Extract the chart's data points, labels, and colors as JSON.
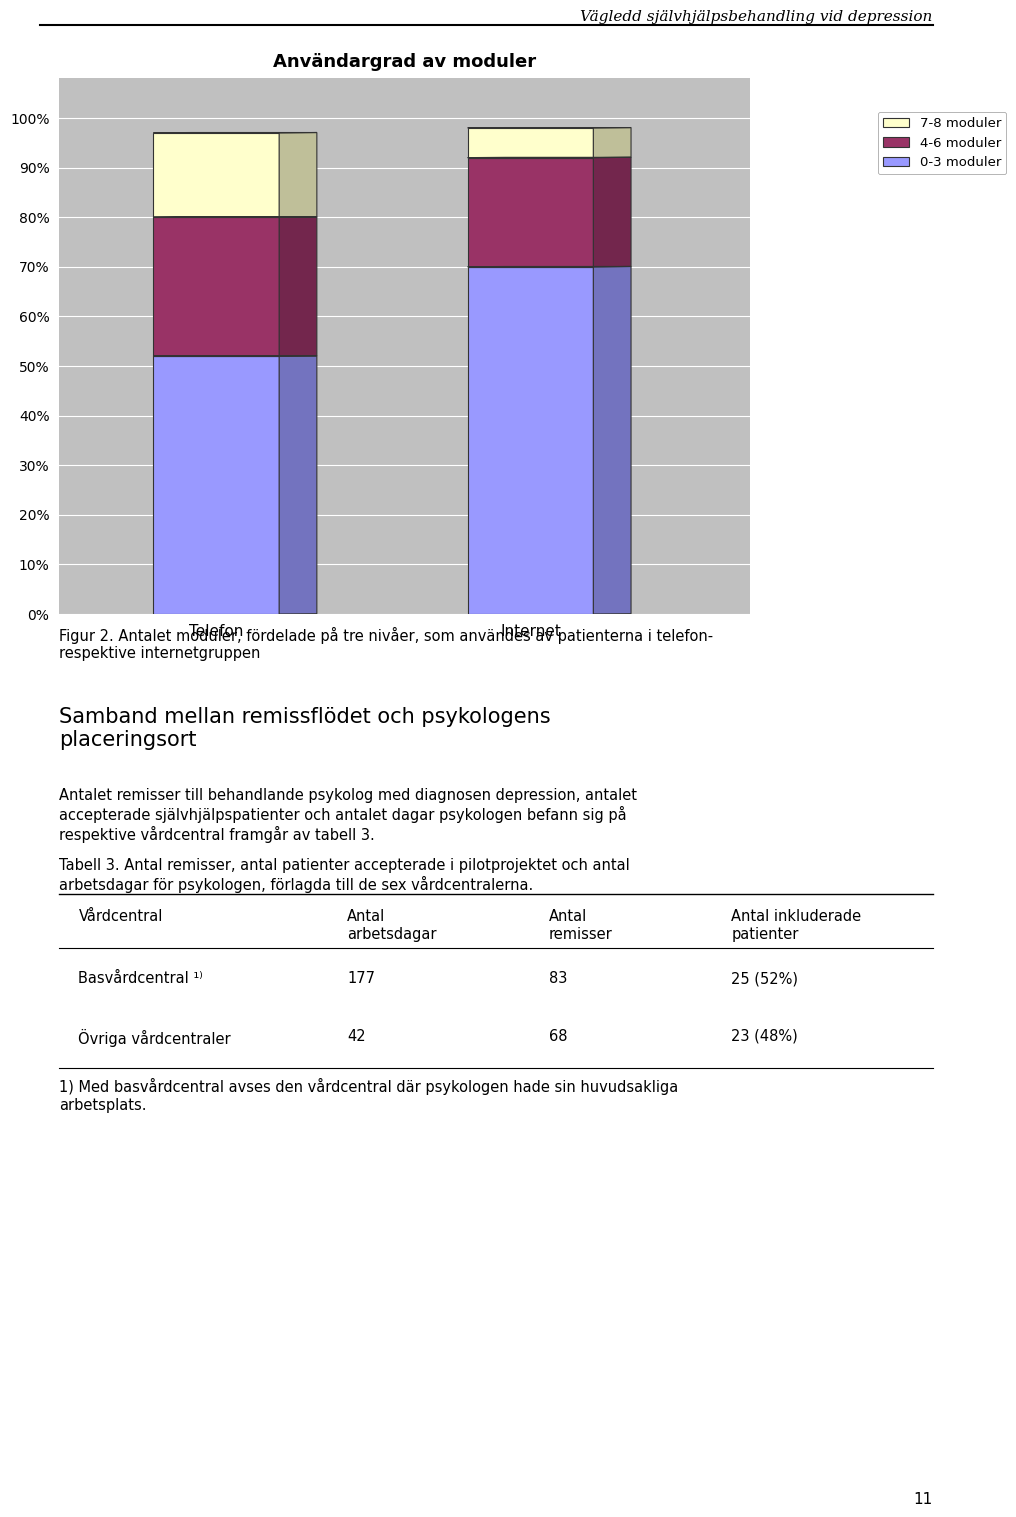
{
  "page_header": "Vägledd självhjälpsbehandling vid depression",
  "chart_title": "Användargrad av moduler",
  "categories": [
    "Telefon",
    "Internet"
  ],
  "series": [
    {
      "label": "0-3 moduler",
      "values": [
        52,
        70
      ],
      "color": "#9999FF"
    },
    {
      "label": "4-6 moduler",
      "values": [
        28,
        22
      ],
      "color": "#993366"
    },
    {
      "label": "7-8 moduler",
      "values": [
        17,
        6
      ],
      "color": "#FFFFCC"
    }
  ],
  "yticks": [
    0,
    10,
    20,
    30,
    40,
    50,
    60,
    70,
    80,
    90,
    100
  ],
  "ylabel_format": "%",
  "fig_caption": "Figur 2. Antalet moduler, fördelade på tre nivåer, som användes av patienterna i telefon-\nrespektive internetgruppen",
  "section_heading": "Samband mellan remissflödet och psykologens\nplaceringsort",
  "section_body": "Antalet remisser till behandlande psykolog med diagnosen depression, antalet\naccepterade självhjälpspatienter och antalet dagar psykologen befann sig på\nrespektive vårdcentral framgår av tabell 3.",
  "table_heading": "Tabell 3. Antal remisser, antal patienter accepterade i pilotprojektet och antal\narbetsdagar för psykologen, förlagda till de sex vårdcentralerna.",
  "table_col_headers": [
    "Vårdcentral",
    "Antal\narbetsdagar",
    "Antal\nremisser",
    "Antal inkluderade\npatienter"
  ],
  "table_rows": [
    [
      "Basvårdcentral ¹⁾",
      "177",
      "83",
      "25 (52%)"
    ],
    [
      "Övriga vårdcentraler",
      "42",
      "68",
      "23 (48%)"
    ]
  ],
  "table_footnote": "1) Med basvårdcentral avses den vårdcentral där psykologen hade sin huvudsakliga\narbetsplats.",
  "page_number": "11"
}
